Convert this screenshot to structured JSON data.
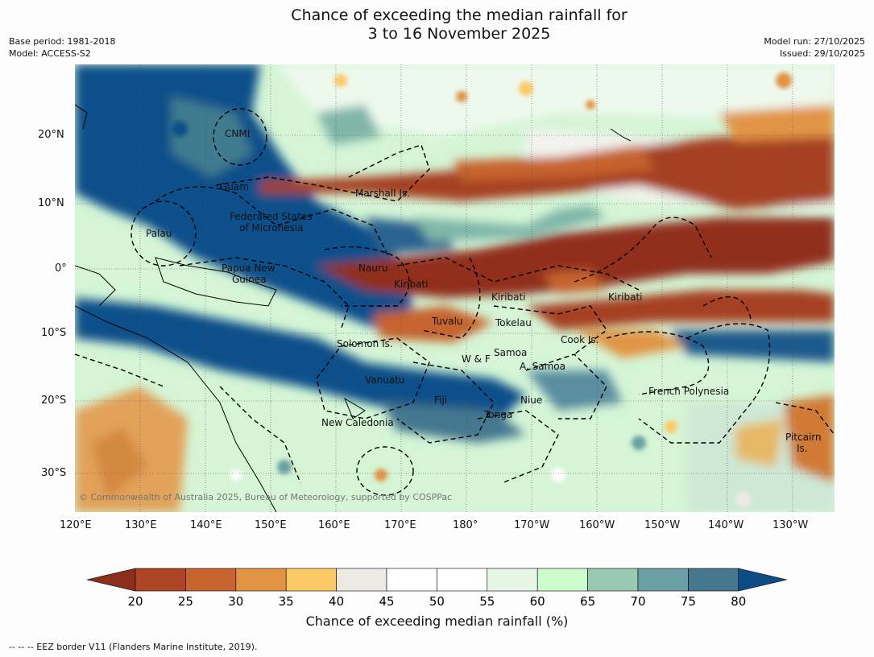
{
  "title_line1": "Chance of exceeding the median rainfall for",
  "title_line2": "3 to 16 November 2025",
  "base_period": "Base period: 1981-2018",
  "model": "Model: ACCESS-S2",
  "model_run": "Model run: 27/10/2025",
  "issued": "Issued: 29/10/2025",
  "copyright": "© Commonwealth of Australia 2025, Bureau of Meteorology, supported by COSPPac",
  "lat_labels": [
    "20°N",
    "10°N",
    "0°",
    "10°S",
    "20°S",
    "30°S"
  ],
  "lon_labels": [
    "120°E",
    "130°E",
    "140°E",
    "150°E",
    "160°E",
    "170°E",
    "180°",
    "170°W",
    "160°W",
    "150°W",
    "140°W",
    "130°W"
  ],
  "regions": {
    "cnmi": "CNMI",
    "guam": "Guam",
    "marshall": "Marshall Is.",
    "fsm1": "Federated States",
    "fsm2": "of Micronesia",
    "palau": "Palau",
    "png1": "Papua New",
    "png2": "Guinea",
    "nauru": "Nauru",
    "kiribati_w": "Kiribati",
    "kiribati_c": "Kiribati",
    "kiribati_e": "Kiribati",
    "tuvalu": "Tuvalu",
    "tokelau": "Tokelau",
    "solomon": "Solomon Is.",
    "cook": "Cook Is.",
    "samoa": "Samoa",
    "wf": "W & F",
    "asamoa": "A. Samoa",
    "vanuatu": "Vanuatu",
    "fiji": "Fiji",
    "niue": "Niue",
    "tonga": "Tonga",
    "fp": "French Polynesia",
    "newcal": "New Caledonia",
    "pitcairn1": "Pitcairn",
    "pitcairn2": "Is."
  },
  "colorbar": {
    "title": "Chance of exceeding median rainfall (%)",
    "ticks": [
      "20",
      "25",
      "30",
      "35",
      "40",
      "45",
      "50",
      "55",
      "60",
      "65",
      "70",
      "75",
      "80"
    ],
    "colors": [
      "#8b2f1c",
      "#ad4526",
      "#c6632f",
      "#e19444",
      "#fcc967",
      "#edeae4",
      "#ffffff",
      "#ffffff",
      "#e8f6e7",
      "#ccfccb",
      "#99c9b2",
      "#6aa0a4",
      "#44788f",
      "#0f4c87"
    ]
  },
  "footnote": "--  --  -- EEZ border V11 (Flanders Marine Institute, 2019)."
}
